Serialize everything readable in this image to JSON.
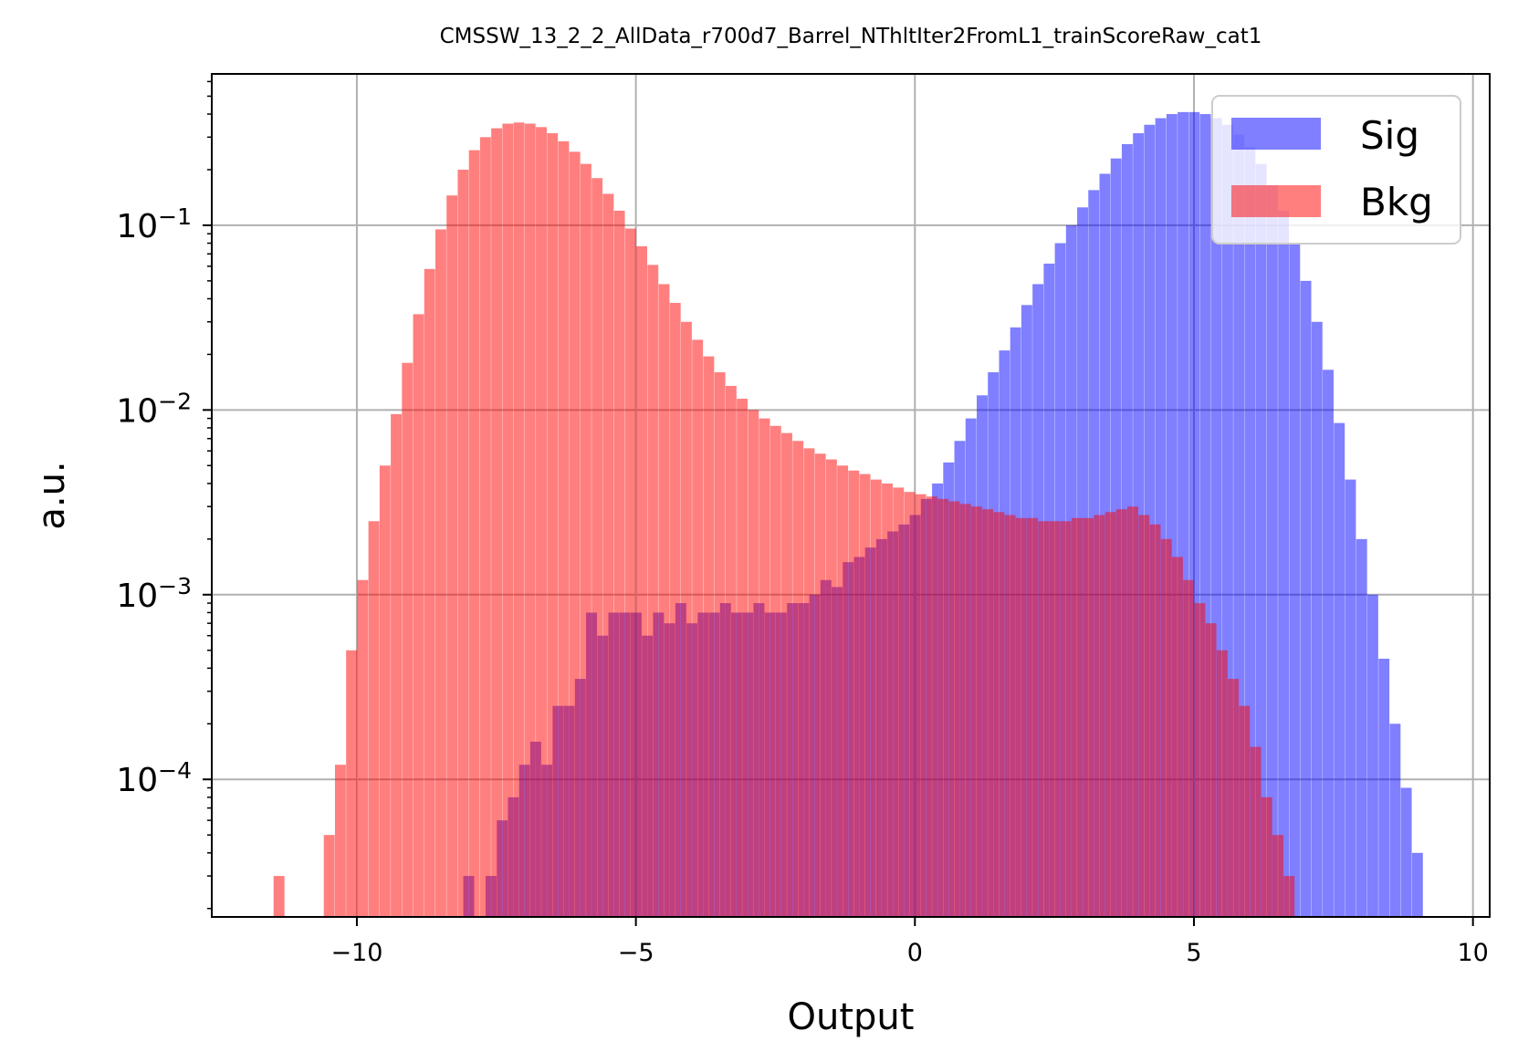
{
  "chart_data": {
    "type": "histogram",
    "title": "CMSSW_13_2_2_AllData_r700d7_Barrel_NThltIter2FromL1_trainScoreRaw_cat1",
    "xlabel": "Output",
    "ylabel": "a.u.",
    "xlim": [
      -12.6,
      10.3
    ],
    "ylim": [
      1.8e-05,
      0.66
    ],
    "yscale": "log",
    "x_ticks": [
      -10,
      -5,
      0,
      5,
      10
    ],
    "x_tick_labels": [
      "−10",
      "−5",
      "0",
      "5",
      "10"
    ],
    "y_ticks": [
      0.0001,
      0.001,
      0.01,
      0.1
    ],
    "y_tick_labels": [
      {
        "base": "10",
        "exp": "−4"
      },
      {
        "base": "10",
        "exp": "−3"
      },
      {
        "base": "10",
        "exp": "−2"
      },
      {
        "base": "10",
        "exp": "−1"
      }
    ],
    "grid": true,
    "legend_position": "top-right",
    "bin_width": 0.185,
    "series": [
      {
        "name": "Sig",
        "color": "#0000ff",
        "alpha": 0.5,
        "bins": [
          [
            -8.0,
            3e-05
          ],
          [
            -7.6,
            3e-05
          ],
          [
            -7.4,
            6e-05
          ],
          [
            -7.2,
            8e-05
          ],
          [
            -7.0,
            0.00012
          ],
          [
            -6.8,
            0.00016
          ],
          [
            -6.6,
            0.00012
          ],
          [
            -6.4,
            0.00025
          ],
          [
            -6.2,
            0.00025
          ],
          [
            -6.0,
            0.00035
          ],
          [
            -5.8,
            0.0008
          ],
          [
            -5.6,
            0.0006
          ],
          [
            -5.4,
            0.0008
          ],
          [
            -5.2,
            0.0008
          ],
          [
            -5.0,
            0.0008
          ],
          [
            -4.8,
            0.0006
          ],
          [
            -4.6,
            0.0008
          ],
          [
            -4.4,
            0.0007
          ],
          [
            -4.2,
            0.0009
          ],
          [
            -4.0,
            0.0007
          ],
          [
            -3.8,
            0.0008
          ],
          [
            -3.6,
            0.0008
          ],
          [
            -3.4,
            0.0009
          ],
          [
            -3.2,
            0.0008
          ],
          [
            -3.0,
            0.0008
          ],
          [
            -2.8,
            0.0009
          ],
          [
            -2.6,
            0.0008
          ],
          [
            -2.4,
            0.0008
          ],
          [
            -2.2,
            0.0009
          ],
          [
            -2.0,
            0.0009
          ],
          [
            -1.8,
            0.001
          ],
          [
            -1.6,
            0.0012
          ],
          [
            -1.4,
            0.0011
          ],
          [
            -1.2,
            0.0015
          ],
          [
            -1.0,
            0.0016
          ],
          [
            -0.8,
            0.0018
          ],
          [
            -0.6,
            0.002
          ],
          [
            -0.4,
            0.0022
          ],
          [
            -0.2,
            0.0024
          ],
          [
            0.0,
            0.0027
          ],
          [
            0.2,
            0.0033
          ],
          [
            0.4,
            0.004
          ],
          [
            0.6,
            0.0052
          ],
          [
            0.8,
            0.0068
          ],
          [
            1.0,
            0.009
          ],
          [
            1.2,
            0.012
          ],
          [
            1.4,
            0.016
          ],
          [
            1.6,
            0.021
          ],
          [
            1.8,
            0.028
          ],
          [
            2.0,
            0.037
          ],
          [
            2.2,
            0.048
          ],
          [
            2.4,
            0.062
          ],
          [
            2.6,
            0.08
          ],
          [
            2.8,
            0.1
          ],
          [
            3.0,
            0.125
          ],
          [
            3.2,
            0.155
          ],
          [
            3.4,
            0.19
          ],
          [
            3.6,
            0.23
          ],
          [
            3.8,
            0.275
          ],
          [
            4.0,
            0.315
          ],
          [
            4.2,
            0.35
          ],
          [
            4.4,
            0.38
          ],
          [
            4.6,
            0.4
          ],
          [
            4.8,
            0.41
          ],
          [
            5.0,
            0.41
          ],
          [
            5.2,
            0.4
          ],
          [
            5.4,
            0.38
          ],
          [
            5.6,
            0.35
          ],
          [
            5.8,
            0.31
          ],
          [
            6.0,
            0.265
          ],
          [
            6.2,
            0.215
          ],
          [
            6.4,
            0.165
          ],
          [
            6.6,
            0.12
          ],
          [
            6.8,
            0.08
          ],
          [
            7.0,
            0.05
          ],
          [
            7.2,
            0.03
          ],
          [
            7.4,
            0.0165
          ],
          [
            7.6,
            0.0085
          ],
          [
            7.8,
            0.0042
          ],
          [
            8.0,
            0.002
          ],
          [
            8.2,
            0.001
          ],
          [
            8.4,
            0.00045
          ],
          [
            8.6,
            0.0002
          ],
          [
            8.8,
            9e-05
          ],
          [
            9.0,
            4e-05
          ]
        ]
      },
      {
        "name": "Bkg",
        "color": "#ff0000",
        "alpha": 0.5,
        "bins": [
          [
            -11.4,
            3e-05
          ],
          [
            -10.5,
            5e-05
          ],
          [
            -10.3,
            0.00012
          ],
          [
            -10.1,
            0.0005
          ],
          [
            -9.9,
            0.0012
          ],
          [
            -9.7,
            0.0025
          ],
          [
            -9.5,
            0.005
          ],
          [
            -9.3,
            0.0095
          ],
          [
            -9.1,
            0.018
          ],
          [
            -8.9,
            0.033
          ],
          [
            -8.7,
            0.058
          ],
          [
            -8.5,
            0.095
          ],
          [
            -8.3,
            0.145
          ],
          [
            -8.1,
            0.2
          ],
          [
            -7.9,
            0.255
          ],
          [
            -7.7,
            0.3
          ],
          [
            -7.5,
            0.335
          ],
          [
            -7.3,
            0.355
          ],
          [
            -7.1,
            0.36
          ],
          [
            -6.9,
            0.355
          ],
          [
            -6.7,
            0.34
          ],
          [
            -6.5,
            0.315
          ],
          [
            -6.3,
            0.285
          ],
          [
            -6.1,
            0.25
          ],
          [
            -5.9,
            0.215
          ],
          [
            -5.7,
            0.18
          ],
          [
            -5.5,
            0.148
          ],
          [
            -5.3,
            0.12
          ],
          [
            -5.1,
            0.096
          ],
          [
            -4.9,
            0.077
          ],
          [
            -4.7,
            0.061
          ],
          [
            -4.5,
            0.048
          ],
          [
            -4.3,
            0.038
          ],
          [
            -4.1,
            0.03
          ],
          [
            -3.9,
            0.024
          ],
          [
            -3.7,
            0.0195
          ],
          [
            -3.5,
            0.016
          ],
          [
            -3.3,
            0.0135
          ],
          [
            -3.1,
            0.0115
          ],
          [
            -2.9,
            0.01
          ],
          [
            -2.7,
            0.009
          ],
          [
            -2.5,
            0.0082
          ],
          [
            -2.3,
            0.0075
          ],
          [
            -2.1,
            0.0068
          ],
          [
            -1.9,
            0.0062
          ],
          [
            -1.7,
            0.0058
          ],
          [
            -1.5,
            0.0054
          ],
          [
            -1.3,
            0.005
          ],
          [
            -1.1,
            0.0047
          ],
          [
            -0.9,
            0.0045
          ],
          [
            -0.7,
            0.0042
          ],
          [
            -0.5,
            0.004
          ],
          [
            -0.3,
            0.0038
          ],
          [
            -0.1,
            0.0036
          ],
          [
            0.1,
            0.0035
          ],
          [
            0.3,
            0.0034
          ],
          [
            0.5,
            0.0033
          ],
          [
            0.7,
            0.0032
          ],
          [
            0.9,
            0.0031
          ],
          [
            1.1,
            0.003
          ],
          [
            1.3,
            0.0029
          ],
          [
            1.5,
            0.0028
          ],
          [
            1.7,
            0.0027
          ],
          [
            1.9,
            0.0026
          ],
          [
            2.1,
            0.0026
          ],
          [
            2.3,
            0.0025
          ],
          [
            2.5,
            0.0025
          ],
          [
            2.7,
            0.0025
          ],
          [
            2.9,
            0.0026
          ],
          [
            3.1,
            0.0026
          ],
          [
            3.3,
            0.0027
          ],
          [
            3.5,
            0.0028
          ],
          [
            3.7,
            0.0029
          ],
          [
            3.9,
            0.003
          ],
          [
            4.1,
            0.0027
          ],
          [
            4.3,
            0.0024
          ],
          [
            4.5,
            0.002
          ],
          [
            4.7,
            0.0016
          ],
          [
            4.9,
            0.0012
          ],
          [
            5.1,
            0.0009
          ],
          [
            5.3,
            0.0007
          ],
          [
            5.5,
            0.0005
          ],
          [
            5.7,
            0.00035
          ],
          [
            5.9,
            0.00025
          ],
          [
            6.1,
            0.00015
          ],
          [
            6.3,
            8e-05
          ],
          [
            6.5,
            5e-05
          ],
          [
            6.7,
            3e-05
          ]
        ]
      }
    ]
  }
}
